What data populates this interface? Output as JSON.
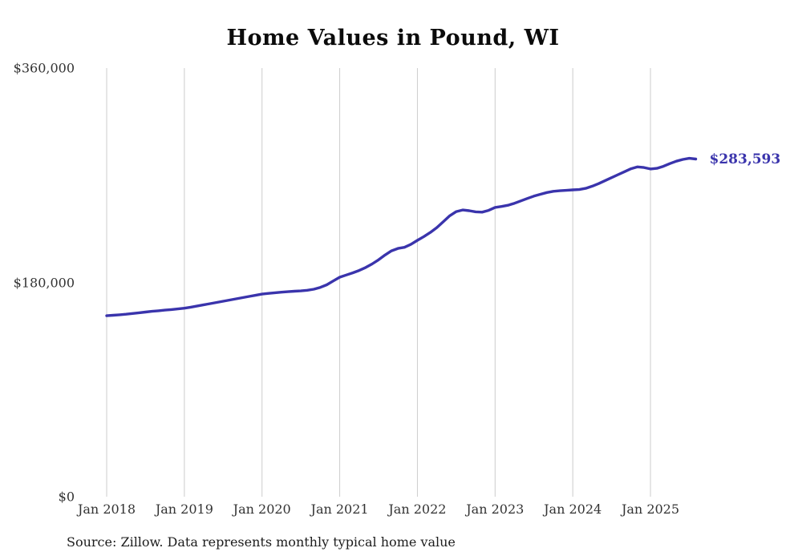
{
  "chart_data": {
    "type": "line",
    "title": "Home Values in Pound, WI",
    "source": "Source: Zillow. Data represents monthly typical home value",
    "end_label": "$283,593",
    "latest_value": 283593,
    "series_name": "Monthly typical home value",
    "line_color": "#3a34ac",
    "grid_color": "#cccccc",
    "text_color": "#333333",
    "grid": "vertical-only",
    "legend": "none",
    "x_start": "Jan 2018",
    "x_end": "Aug 2025",
    "x_tick_labels": [
      "Jan 2018",
      "Jan 2019",
      "Jan 2020",
      "Jan 2021",
      "Jan 2022",
      "Jan 2023",
      "Jan 2024",
      "Jan 2025"
    ],
    "y_ticks": [
      {
        "value": 0,
        "label": "$0"
      },
      {
        "value": 180000,
        "label": "$180,000"
      },
      {
        "value": 360000,
        "label": "$360,000"
      }
    ],
    "ylim": [
      0,
      360000
    ],
    "values": [
      152000,
      152400,
      152800,
      153300,
      153900,
      154500,
      155100,
      155700,
      156200,
      156700,
      157200,
      157700,
      158300,
      159200,
      160200,
      161200,
      162200,
      163200,
      164200,
      165200,
      166200,
      167200,
      168200,
      169200,
      170200,
      170800,
      171300,
      171800,
      172200,
      172600,
      172900,
      173400,
      174300,
      175800,
      178000,
      181200,
      184400,
      186200,
      188000,
      190000,
      192500,
      195500,
      199000,
      203000,
      206500,
      208500,
      209500,
      212000,
      215300,
      218500,
      222000,
      226000,
      231000,
      236000,
      239500,
      240800,
      240200,
      239300,
      239000,
      240500,
      243000,
      243800,
      244800,
      246500,
      248500,
      250500,
      252500,
      254000,
      255500,
      256500,
      257000,
      257300,
      257700,
      258000,
      259000,
      260800,
      263000,
      265500,
      268000,
      270500,
      273000,
      275500,
      277000,
      276500,
      275300,
      275800,
      277500,
      279800,
      281800,
      283300,
      284200,
      283593
    ]
  }
}
